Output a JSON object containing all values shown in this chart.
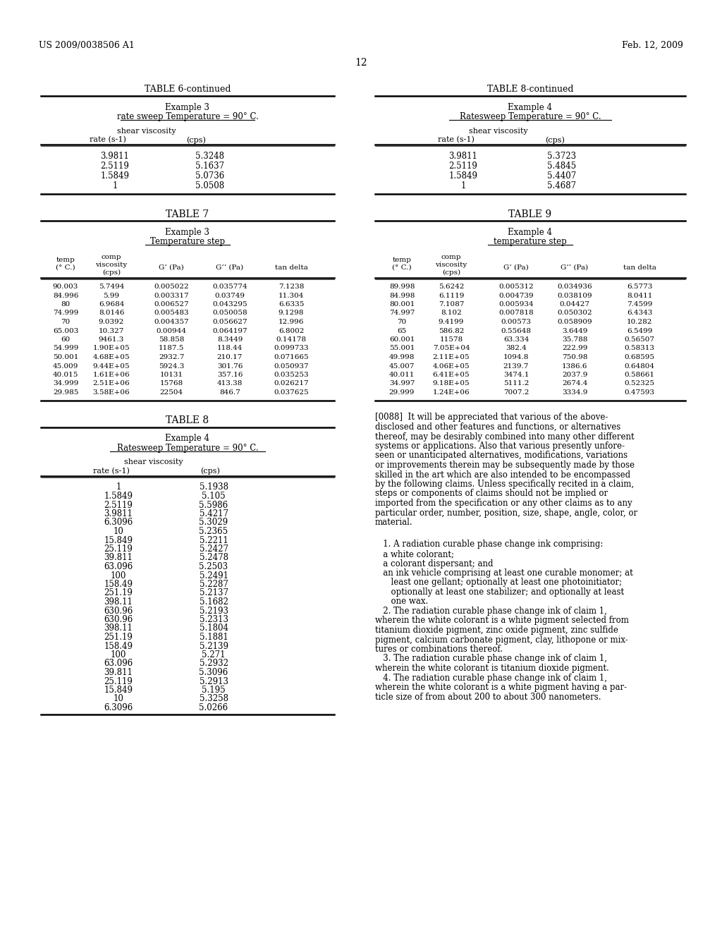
{
  "header_left": "US 2009/0038506 A1",
  "header_right": "Feb. 12, 2009",
  "page_number": "12",
  "background_color": "#ffffff",
  "table6c_title": "TABLE 6-continued",
  "table6c_subtitle1": "Example 3",
  "table6c_subtitle2": "rate sweep Temperature = 90° C.",
  "table6c_col1": "rate (s-1)",
  "table6c_col2_line1": "shear viscosity",
  "table6c_col2_line2": "(cps)",
  "table6c_data": [
    [
      "3.9811",
      "5.3248"
    ],
    [
      "2.5119",
      "5.1637"
    ],
    [
      "1.5849",
      "5.0736"
    ],
    [
      "1",
      "5.0508"
    ]
  ],
  "table7_title": "TABLE 7",
  "table7_subtitle1": "Example 3",
  "table7_subtitle2": "Temperature step",
  "table7_col1_line1": "temp",
  "table7_col1_line2": "(° C.)",
  "table7_col2_line1": "comp",
  "table7_col2_line2": "viscosity",
  "table7_col2_line3": "(cps)",
  "table7_col3": "G’ (Pa)",
  "table7_col4": "G’’ (Pa)",
  "table7_col5": "tan delta",
  "table7_data": [
    [
      "90.003",
      "5.7494",
      "0.005022",
      "0.035774",
      "7.1238"
    ],
    [
      "84.996",
      "5.99",
      "0.003317",
      "0.03749",
      "11.304"
    ],
    [
      "80",
      "6.9684",
      "0.006527",
      "0.043295",
      "6.6335"
    ],
    [
      "74.999",
      "8.0146",
      "0.005483",
      "0.050058",
      "9.1298"
    ],
    [
      "70",
      "9.0392",
      "0.004357",
      "0.056627",
      "12.996"
    ],
    [
      "65.003",
      "10.327",
      "0.00944",
      "0.064197",
      "6.8002"
    ],
    [
      "60",
      "9461.3",
      "58.858",
      "8.3449",
      "0.14178"
    ],
    [
      "54.999",
      "1.90E+05",
      "1187.5",
      "118.44",
      "0.099733"
    ],
    [
      "50.001",
      "4.68E+05",
      "2932.7",
      "210.17",
      "0.071665"
    ],
    [
      "45.009",
      "9.44E+05",
      "5924.3",
      "301.76",
      "0.050937"
    ],
    [
      "40.015",
      "1.61E+06",
      "10131",
      "357.16",
      "0.035253"
    ],
    [
      "34.999",
      "2.51E+06",
      "15768",
      "413.38",
      "0.026217"
    ],
    [
      "29.985",
      "3.58E+06",
      "22504",
      "846.7",
      "0.037625"
    ]
  ],
  "table8_title": "TABLE 8",
  "table8_subtitle1": "Example 4",
  "table8_subtitle2": "Ratesweep Temperature = 90° C.",
  "table8_col1": "rate (s-1)",
  "table8_col2_line1": "shear viscosity",
  "table8_col2_line2": "(cps)",
  "table8_data": [
    [
      "1",
      "5.1938"
    ],
    [
      "1.5849",
      "5.105"
    ],
    [
      "2.5119",
      "5.5986"
    ],
    [
      "3.9811",
      "5.4217"
    ],
    [
      "6.3096",
      "5.3029"
    ],
    [
      "10",
      "5.2365"
    ],
    [
      "15.849",
      "5.2211"
    ],
    [
      "25.119",
      "5.2427"
    ],
    [
      "39.811",
      "5.2478"
    ],
    [
      "63.096",
      "5.2503"
    ],
    [
      "100",
      "5.2491"
    ],
    [
      "158.49",
      "5.2287"
    ],
    [
      "251.19",
      "5.2137"
    ],
    [
      "398.11",
      "5.1682"
    ],
    [
      "630.96",
      "5.2193"
    ],
    [
      "630.96",
      "5.2313"
    ],
    [
      "398.11",
      "5.1804"
    ],
    [
      "251.19",
      "5.1881"
    ],
    [
      "158.49",
      "5.2139"
    ],
    [
      "100",
      "5.271"
    ],
    [
      "63.096",
      "5.2932"
    ],
    [
      "39.811",
      "5.3096"
    ],
    [
      "25.119",
      "5.2913"
    ],
    [
      "15.849",
      "5.195"
    ],
    [
      "10",
      "5.3258"
    ],
    [
      "6.3096",
      "5.0266"
    ]
  ],
  "table8c_title": "TABLE 8-continued",
  "table8c_subtitle1": "Example 4",
  "table8c_subtitle2": "Ratesweep Temperature = 90° C.",
  "table8c_col1": "rate (s-1)",
  "table8c_col2_line1": "shear viscosity",
  "table8c_col2_line2": "(cps)",
  "table8c_data": [
    [
      "3.9811",
      "5.3723"
    ],
    [
      "2.5119",
      "5.4845"
    ],
    [
      "1.5849",
      "5.4407"
    ],
    [
      "1",
      "5.4687"
    ]
  ],
  "table9_title": "TABLE 9",
  "table9_subtitle1": "Example 4",
  "table9_subtitle2": "temperature step",
  "table9_col1_line1": "temp",
  "table9_col1_line2": "(° C.)",
  "table9_col2_line1": "comp",
  "table9_col2_line2": "viscosity",
  "table9_col2_line3": "(cps)",
  "table9_col3": "G’ (Pa)",
  "table9_col4": "G’’ (Pa)",
  "table9_col5": "tan delta",
  "table9_data": [
    [
      "89.998",
      "5.6242",
      "0.005312",
      "0.034936",
      "6.5773"
    ],
    [
      "84.998",
      "6.1119",
      "0.004739",
      "0.038109",
      "8.0411"
    ],
    [
      "80.001",
      "7.1087",
      "0.005934",
      "0.04427",
      "7.4599"
    ],
    [
      "74.997",
      "8.102",
      "0.007818",
      "0.050302",
      "6.4343"
    ],
    [
      "70",
      "9.4199",
      "0.00573",
      "0.058909",
      "10.282"
    ],
    [
      "65",
      "586.82",
      "0.55648",
      "3.6449",
      "6.5499"
    ],
    [
      "60.001",
      "11578",
      "63.334",
      "35.788",
      "0.56507"
    ],
    [
      "55.001",
      "7.05E+04",
      "382.4",
      "222.99",
      "0.58313"
    ],
    [
      "49.998",
      "2.11E+05",
      "1094.8",
      "750.98",
      "0.68595"
    ],
    [
      "45.007",
      "4.06E+05",
      "2139.7",
      "1386.6",
      "0.64804"
    ],
    [
      "40.011",
      "6.41E+05",
      "3474.1",
      "2037.9",
      "0.58661"
    ],
    [
      "34.997",
      "9.18E+05",
      "5111.2",
      "2674.4",
      "0.52325"
    ],
    [
      "29.999",
      "1.24E+06",
      "7007.2",
      "3334.9",
      "0.47593"
    ]
  ],
  "para_0088_lines": [
    "[0088]  It will be appreciated that various of the above-",
    "disclosed and other features and functions, or alternatives",
    "thereof, may be desirably combined into many other different",
    "systems or applications. Also that various presently unfore-",
    "seen or unanticipated alternatives, modifications, variations",
    "or improvements therein may be subsequently made by those",
    "skilled in the art which are also intended to be encompassed",
    "by the following claims. Unless specifically recited in a claim,",
    "steps or components of claims should not be implied or",
    "imported from the specification or any other claims as to any",
    "particular order, number, position, size, shape, angle, color, or",
    "material."
  ],
  "claim1_line1": "   1. A radiation curable phase change ink comprising:",
  "claim1_line2": "   a white colorant;",
  "claim1_line3": "   a colorant dispersant; and",
  "claim1_line4a": "   an ink vehicle comprising at least one curable monomer; at",
  "claim1_line4b": "      least one gellant; optionally at least one photoinitiator;",
  "claim1_line4c": "      optionally at least one stabilizer; and optionally at least",
  "claim1_line4d": "      one wax.",
  "claim2_lines": [
    "   2. The radiation curable phase change ink of claim 1,",
    "wherein the white colorant is a white pigment selected from",
    "titanium dioxide pigment, zinc oxide pigment, zinc sulfide",
    "pigment, calcium carbonate pigment, clay, lithopone or mix-",
    "tures or combinations thereof."
  ],
  "claim3_lines": [
    "   3. The radiation curable phase change ink of claim 1,",
    "wherein the white colorant is titanium dioxide pigment."
  ],
  "claim4_lines": [
    "   4. The radiation curable phase change ink of claim 1,",
    "wherein the white colorant is a white pigment having a par-",
    "ticle size of from about 200 to about 300 nanometers."
  ]
}
